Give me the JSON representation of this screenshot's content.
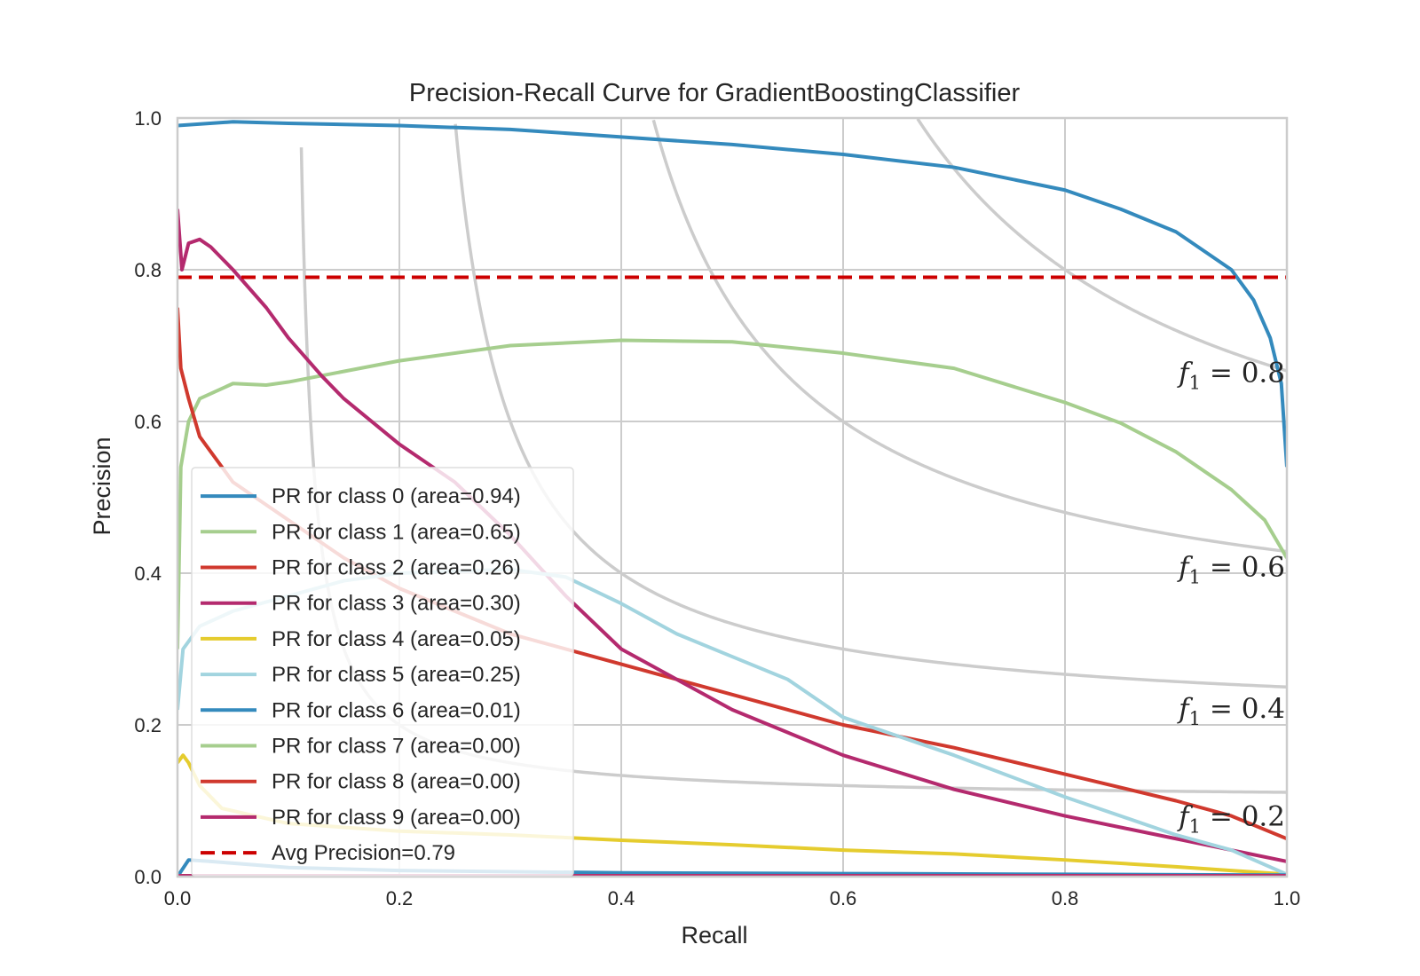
{
  "chart_data": {
    "type": "line",
    "title": "Precision-Recall Curve for GradientBoostingClassifier",
    "xlabel": "Recall",
    "ylabel": "Precision",
    "xlim": [
      0.0,
      1.0
    ],
    "ylim": [
      0.0,
      1.0
    ],
    "x_ticks": [
      "0.0",
      "0.2",
      "0.4",
      "0.6",
      "0.8",
      "1.0"
    ],
    "y_ticks": [
      "0.0",
      "0.2",
      "0.4",
      "0.6",
      "0.8",
      "1.0"
    ],
    "grid": true,
    "legend_position": "lower-left",
    "iso_f1_curves": [
      {
        "f1": 0.2,
        "label_prefix": "f",
        "label_sub": "1",
        "label_suffix": " = 0.2",
        "color": "#cccccc"
      },
      {
        "f1": 0.4,
        "label_prefix": "f",
        "label_sub": "1",
        "label_suffix": " = 0.4",
        "color": "#cccccc"
      },
      {
        "f1": 0.6,
        "label_prefix": "f",
        "label_sub": "1",
        "label_suffix": " = 0.6",
        "color": "#cccccc"
      },
      {
        "f1": 0.8,
        "label_prefix": "f",
        "label_sub": "1",
        "label_suffix": " = 0.8",
        "color": "#cccccc"
      }
    ],
    "series": [
      {
        "name": "PR for class 0 (area=0.94)",
        "color": "#348ABD",
        "width": 4,
        "points": [
          [
            0,
            0.99
          ],
          [
            0.05,
            0.995
          ],
          [
            0.1,
            0.993
          ],
          [
            0.2,
            0.99
          ],
          [
            0.3,
            0.985
          ],
          [
            0.4,
            0.975
          ],
          [
            0.5,
            0.965
          ],
          [
            0.6,
            0.952
          ],
          [
            0.7,
            0.935
          ],
          [
            0.8,
            0.905
          ],
          [
            0.85,
            0.88
          ],
          [
            0.9,
            0.85
          ],
          [
            0.93,
            0.82
          ],
          [
            0.95,
            0.8
          ],
          [
            0.97,
            0.76
          ],
          [
            0.985,
            0.71
          ],
          [
            0.995,
            0.65
          ],
          [
            1.0,
            0.54
          ]
        ]
      },
      {
        "name": "PR for class 1 (area=0.65)",
        "color": "#A6CE8E",
        "width": 4,
        "points": [
          [
            0,
            0.3
          ],
          [
            0.003,
            0.54
          ],
          [
            0.01,
            0.6
          ],
          [
            0.02,
            0.63
          ],
          [
            0.05,
            0.65
          ],
          [
            0.08,
            0.648
          ],
          [
            0.1,
            0.652
          ],
          [
            0.2,
            0.68
          ],
          [
            0.3,
            0.7
          ],
          [
            0.4,
            0.707
          ],
          [
            0.5,
            0.705
          ],
          [
            0.6,
            0.69
          ],
          [
            0.7,
            0.67
          ],
          [
            0.8,
            0.625
          ],
          [
            0.85,
            0.598
          ],
          [
            0.9,
            0.56
          ],
          [
            0.95,
            0.51
          ],
          [
            0.98,
            0.47
          ],
          [
            1.0,
            0.42
          ]
        ]
      },
      {
        "name": "PR for class 2 (area=0.26)",
        "color": "#D0392E",
        "width": 4,
        "points": [
          [
            0,
            0.75
          ],
          [
            0.003,
            0.67
          ],
          [
            0.01,
            0.63
          ],
          [
            0.02,
            0.58
          ],
          [
            0.05,
            0.52
          ],
          [
            0.1,
            0.47
          ],
          [
            0.15,
            0.42
          ],
          [
            0.2,
            0.38
          ],
          [
            0.3,
            0.32
          ],
          [
            0.4,
            0.28
          ],
          [
            0.5,
            0.24
          ],
          [
            0.6,
            0.2
          ],
          [
            0.7,
            0.17
          ],
          [
            0.8,
            0.135
          ],
          [
            0.9,
            0.1
          ],
          [
            0.95,
            0.08
          ],
          [
            1.0,
            0.05
          ]
        ]
      },
      {
        "name": "PR for class 3 (area=0.30)",
        "color": "#B42A6E",
        "width": 4,
        "points": [
          [
            0,
            0.88
          ],
          [
            0.004,
            0.8
          ],
          [
            0.01,
            0.835
          ],
          [
            0.02,
            0.84
          ],
          [
            0.03,
            0.83
          ],
          [
            0.05,
            0.8
          ],
          [
            0.08,
            0.75
          ],
          [
            0.1,
            0.71
          ],
          [
            0.13,
            0.66
          ],
          [
            0.15,
            0.63
          ],
          [
            0.2,
            0.57
          ],
          [
            0.25,
            0.52
          ],
          [
            0.3,
            0.45
          ],
          [
            0.35,
            0.37
          ],
          [
            0.4,
            0.3
          ],
          [
            0.45,
            0.26
          ],
          [
            0.5,
            0.22
          ],
          [
            0.6,
            0.16
          ],
          [
            0.7,
            0.115
          ],
          [
            0.8,
            0.08
          ],
          [
            0.9,
            0.05
          ],
          [
            1.0,
            0.02
          ]
        ]
      },
      {
        "name": "PR for class 4 (area=0.05)",
        "color": "#E5CC2E",
        "width": 4,
        "points": [
          [
            0,
            0.15
          ],
          [
            0.005,
            0.16
          ],
          [
            0.01,
            0.15
          ],
          [
            0.02,
            0.12
          ],
          [
            0.04,
            0.09
          ],
          [
            0.1,
            0.07
          ],
          [
            0.2,
            0.06
          ],
          [
            0.3,
            0.055
          ],
          [
            0.4,
            0.048
          ],
          [
            0.5,
            0.042
          ],
          [
            0.6,
            0.035
          ],
          [
            0.7,
            0.03
          ],
          [
            0.8,
            0.022
          ],
          [
            0.9,
            0.013
          ],
          [
            1.0,
            0.003
          ]
        ]
      },
      {
        "name": "PR for class 5 (area=0.25)",
        "color": "#A2D4DF",
        "width": 4,
        "points": [
          [
            0,
            0.22
          ],
          [
            0.005,
            0.3
          ],
          [
            0.02,
            0.33
          ],
          [
            0.05,
            0.35
          ],
          [
            0.1,
            0.37
          ],
          [
            0.15,
            0.39
          ],
          [
            0.2,
            0.4
          ],
          [
            0.3,
            0.405
          ],
          [
            0.35,
            0.395
          ],
          [
            0.4,
            0.36
          ],
          [
            0.45,
            0.32
          ],
          [
            0.5,
            0.29
          ],
          [
            0.55,
            0.26
          ],
          [
            0.6,
            0.21
          ],
          [
            0.65,
            0.185
          ],
          [
            0.7,
            0.16
          ],
          [
            0.8,
            0.105
          ],
          [
            0.9,
            0.055
          ],
          [
            0.95,
            0.035
          ],
          [
            1.0,
            0.003
          ]
        ]
      },
      {
        "name": "PR for class 6 (area=0.01)",
        "color": "#348ABD",
        "width": 4,
        "points": [
          [
            0,
            0.0
          ],
          [
            0.01,
            0.022
          ],
          [
            0.03,
            0.02
          ],
          [
            0.1,
            0.012
          ],
          [
            0.2,
            0.008
          ],
          [
            0.4,
            0.005
          ],
          [
            0.6,
            0.004
          ],
          [
            0.8,
            0.003
          ],
          [
            1.0,
            0.002
          ]
        ]
      },
      {
        "name": "PR for class 7 (area=0.00)",
        "color": "#A6CE8E",
        "width": 4,
        "points": [
          [
            0,
            0.001
          ],
          [
            1.0,
            0.001
          ]
        ]
      },
      {
        "name": "PR for class 8 (area=0.00)",
        "color": "#D0392E",
        "width": 4,
        "points": [
          [
            0,
            0.001
          ],
          [
            1.0,
            0.001
          ]
        ]
      },
      {
        "name": "PR for class 9 (area=0.00)",
        "color": "#B42A6E",
        "width": 4,
        "points": [
          [
            0,
            0.001
          ],
          [
            1.0,
            0.001
          ]
        ]
      }
    ],
    "avg_precision": {
      "name": "Avg Precision=0.79",
      "value": 0.79,
      "color": "#CC0000"
    }
  }
}
